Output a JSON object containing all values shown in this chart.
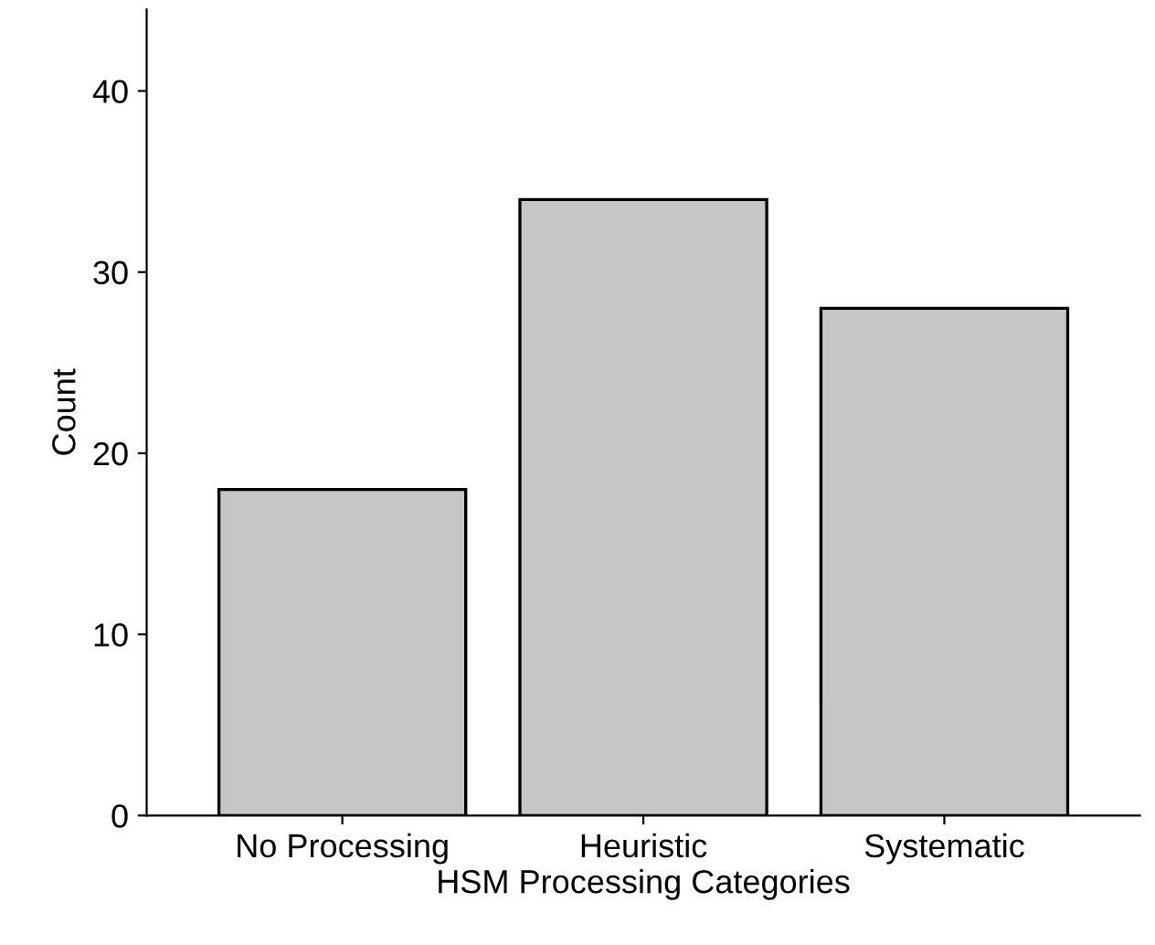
{
  "chart_data": {
    "type": "bar",
    "xlabel": "HSM Processing Categories",
    "ylabel": "Count",
    "categories": [
      "No Processing",
      "Heuristic",
      "Systematic"
    ],
    "values": [
      18,
      34,
      28
    ],
    "color": "#c6c6c6",
    "ylim": [
      0,
      44.5
    ],
    "yticks": [
      0,
      10,
      20,
      30,
      40
    ],
    "grid": false,
    "legend": false
  }
}
